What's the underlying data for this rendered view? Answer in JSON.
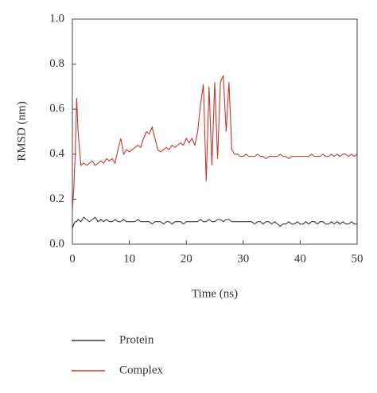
{
  "chart_data": {
    "type": "line",
    "xlabel": "Time (ns)",
    "ylabel": "RMSD (nm)",
    "x": [
      0,
      0.25,
      0.5,
      0.75,
      1,
      1.5,
      2,
      2.5,
      3,
      3.5,
      4,
      4.5,
      5,
      5.5,
      6,
      6.5,
      7,
      7.5,
      8,
      8.5,
      9,
      9.5,
      10,
      10.5,
      11,
      11.5,
      12,
      12.5,
      13,
      13.5,
      14,
      14.5,
      15,
      15.5,
      16,
      16.5,
      17,
      17.5,
      18,
      18.5,
      19,
      19.5,
      20,
      20.5,
      21,
      21.5,
      22,
      22.5,
      23,
      23.5,
      24,
      24.5,
      25,
      25.5,
      26,
      26.5,
      27,
      27.5,
      28,
      28.5,
      29,
      29.5,
      30,
      30.5,
      31,
      31.5,
      32,
      32.5,
      33,
      33.5,
      34,
      34.5,
      35,
      35.5,
      36,
      36.5,
      37,
      37.5,
      38,
      38.5,
      39,
      39.5,
      40,
      40.5,
      41,
      41.5,
      42,
      42.5,
      43,
      43.5,
      44,
      44.5,
      45,
      45.5,
      46,
      46.5,
      47,
      47.5,
      48,
      48.5,
      49,
      49.5,
      50
    ],
    "series": [
      {
        "name": "Protein",
        "color": "#3a3a3a",
        "values": [
          0.07,
          0.09,
          0.1,
          0.1,
          0.11,
          0.1,
          0.12,
          0.11,
          0.1,
          0.11,
          0.12,
          0.1,
          0.11,
          0.1,
          0.11,
          0.1,
          0.1,
          0.11,
          0.1,
          0.1,
          0.11,
          0.1,
          0.1,
          0.1,
          0.1,
          0.11,
          0.1,
          0.1,
          0.1,
          0.1,
          0.09,
          0.1,
          0.1,
          0.1,
          0.09,
          0.1,
          0.1,
          0.09,
          0.1,
          0.1,
          0.1,
          0.09,
          0.1,
          0.1,
          0.1,
          0.1,
          0.1,
          0.11,
          0.1,
          0.1,
          0.11,
          0.1,
          0.1,
          0.11,
          0.11,
          0.1,
          0.11,
          0.11,
          0.1,
          0.1,
          0.1,
          0.1,
          0.1,
          0.1,
          0.1,
          0.1,
          0.09,
          0.1,
          0.1,
          0.09,
          0.1,
          0.1,
          0.09,
          0.1,
          0.09,
          0.08,
          0.09,
          0.09,
          0.1,
          0.09,
          0.09,
          0.1,
          0.09,
          0.09,
          0.1,
          0.09,
          0.1,
          0.1,
          0.09,
          0.1,
          0.1,
          0.09,
          0.09,
          0.1,
          0.09,
          0.1,
          0.09,
          0.1,
          0.09,
          0.09,
          0.1,
          0.09,
          0.09
        ]
      },
      {
        "name": "Complex",
        "color": "#c8372d",
        "values": [
          0.15,
          0.25,
          0.4,
          0.65,
          0.5,
          0.35,
          0.36,
          0.35,
          0.36,
          0.37,
          0.35,
          0.36,
          0.37,
          0.36,
          0.38,
          0.37,
          0.38,
          0.36,
          0.42,
          0.47,
          0.4,
          0.42,
          0.41,
          0.42,
          0.43,
          0.44,
          0.43,
          0.47,
          0.5,
          0.49,
          0.52,
          0.47,
          0.42,
          0.41,
          0.42,
          0.43,
          0.42,
          0.44,
          0.43,
          0.44,
          0.45,
          0.44,
          0.47,
          0.45,
          0.47,
          0.44,
          0.5,
          0.62,
          0.71,
          0.28,
          0.7,
          0.35,
          0.72,
          0.38,
          0.72,
          0.75,
          0.5,
          0.72,
          0.42,
          0.4,
          0.4,
          0.39,
          0.39,
          0.4,
          0.39,
          0.39,
          0.39,
          0.4,
          0.39,
          0.39,
          0.38,
          0.39,
          0.39,
          0.39,
          0.39,
          0.4,
          0.39,
          0.39,
          0.38,
          0.39,
          0.39,
          0.39,
          0.39,
          0.39,
          0.39,
          0.39,
          0.4,
          0.39,
          0.39,
          0.39,
          0.4,
          0.39,
          0.39,
          0.4,
          0.39,
          0.4,
          0.39,
          0.4,
          0.4,
          0.39,
          0.4,
          0.39,
          0.4
        ]
      }
    ],
    "xlim": [
      0,
      50
    ],
    "xticks": [
      0,
      10,
      20,
      30,
      40,
      50
    ],
    "ylim": [
      0,
      1
    ],
    "yticks": [
      {
        "value": 0,
        "label": "0.0"
      },
      0.2,
      0.4,
      0.6,
      0.8,
      {
        "value": 1,
        "label": "1.0"
      }
    ],
    "grid": false
  }
}
